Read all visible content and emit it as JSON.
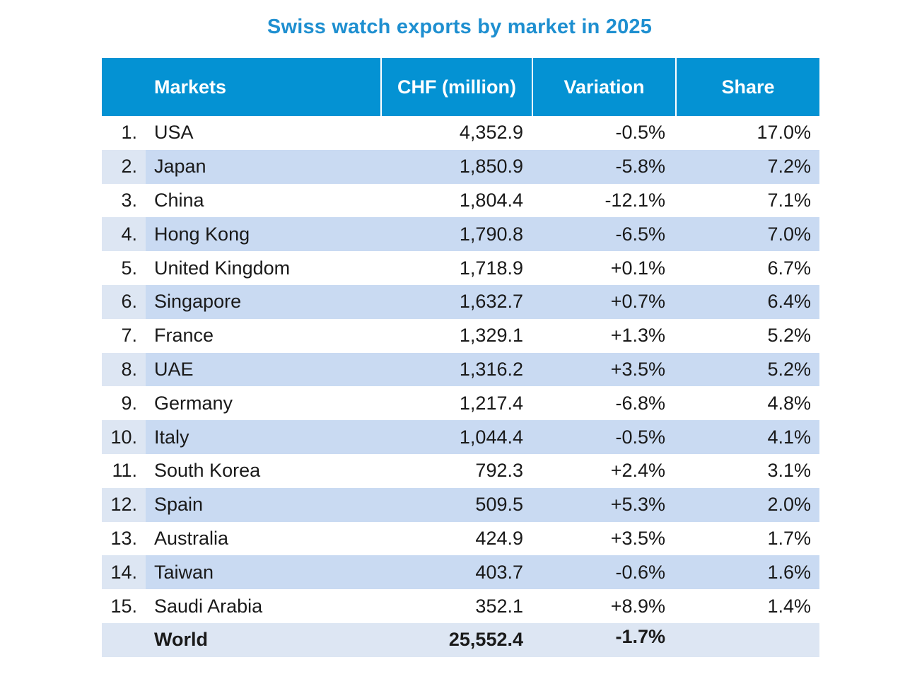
{
  "title": "Swiss watch exports by market in 2025",
  "header": {
    "market": "Markets",
    "chf": "CHF (million)",
    "variation": "Variation",
    "share": "Share"
  },
  "rows": [
    {
      "rank": "1.",
      "market": "USA",
      "chf": "4,352.9",
      "variation": "-0.5%",
      "share": "17.0%"
    },
    {
      "rank": "2.",
      "market": "Japan",
      "chf": "1,850.9",
      "variation": "-5.8%",
      "share": "7.2%"
    },
    {
      "rank": "3.",
      "market": "China",
      "chf": "1,804.4",
      "variation": "-12.1%",
      "share": "7.1%"
    },
    {
      "rank": "4.",
      "market": "Hong Kong",
      "chf": "1,790.8",
      "variation": "-6.5%",
      "share": "7.0%"
    },
    {
      "rank": "5.",
      "market": "United Kingdom",
      "chf": "1,718.9",
      "variation": "+0.1%",
      "share": "6.7%"
    },
    {
      "rank": "6.",
      "market": "Singapore",
      "chf": "1,632.7",
      "variation": "+0.7%",
      "share": "6.4%"
    },
    {
      "rank": "7.",
      "market": "France",
      "chf": "1,329.1",
      "variation": "+1.3%",
      "share": "5.2%"
    },
    {
      "rank": "8.",
      "market": "UAE",
      "chf": "1,316.2",
      "variation": "+3.5%",
      "share": "5.2%"
    },
    {
      "rank": "9.",
      "market": "Germany",
      "chf": "1,217.4",
      "variation": "-6.8%",
      "share": "4.8%"
    },
    {
      "rank": "10.",
      "market": "Italy",
      "chf": "1,044.4",
      "variation": "-0.5%",
      "share": "4.1%"
    },
    {
      "rank": "11.",
      "market": "South Korea",
      "chf": "792.3",
      "variation": "+2.4%",
      "share": "3.1%"
    },
    {
      "rank": "12.",
      "market": "Spain",
      "chf": "509.5",
      "variation": "+5.3%",
      "share": "2.0%"
    },
    {
      "rank": "13.",
      "market": "Australia",
      "chf": "424.9",
      "variation": "+3.5%",
      "share": "1.7%"
    },
    {
      "rank": "14.",
      "market": "Taiwan",
      "chf": "403.7",
      "variation": "-0.6%",
      "share": "1.6%"
    },
    {
      "rank": "15.",
      "market": "Saudi Arabia",
      "chf": "352.1",
      "variation": "+8.9%",
      "share": "1.4%"
    }
  ],
  "total": {
    "market": "World",
    "chf": "25,552.4",
    "variation": "-1.7%"
  },
  "colors": {
    "title": "#1e8fd0",
    "header_bg": "#0492d3",
    "row_alt": "#c9daf2",
    "total_bg": "#dde6f3"
  }
}
